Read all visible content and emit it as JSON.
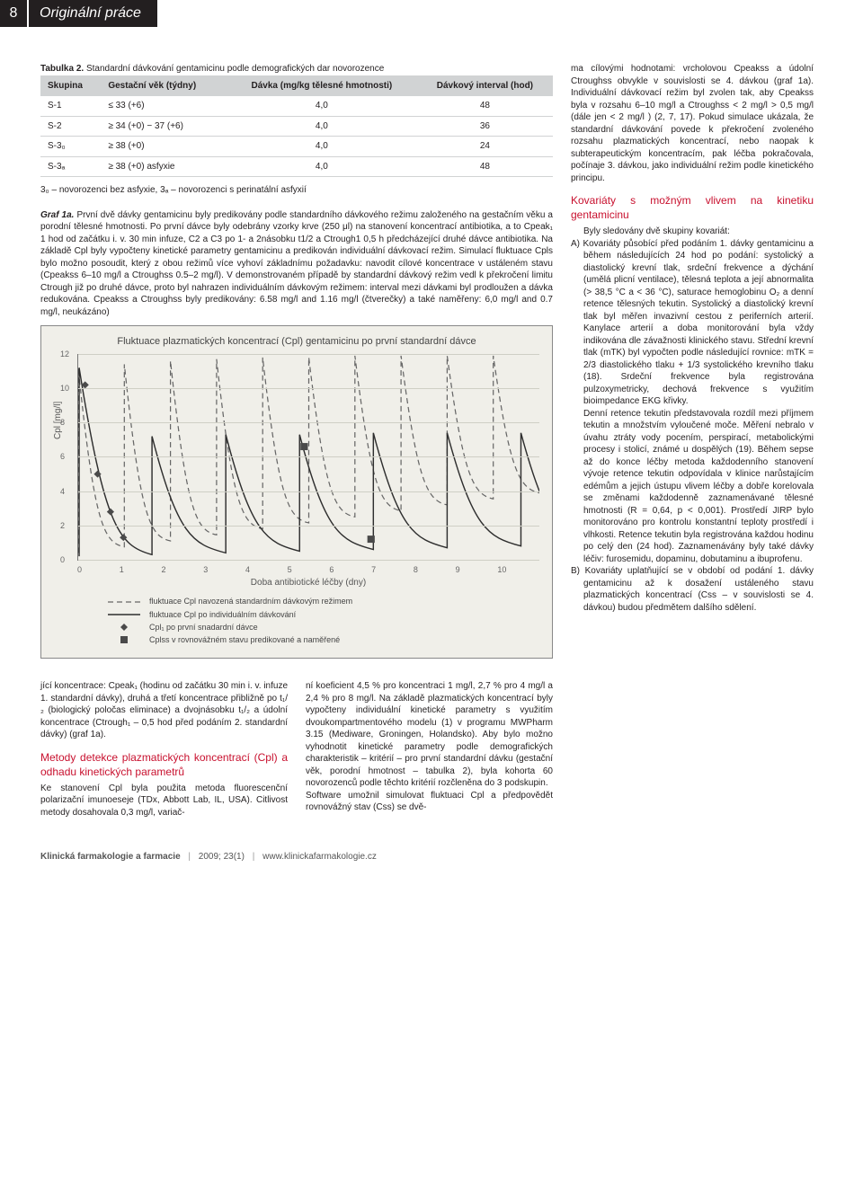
{
  "header": {
    "page_number": "8",
    "section": "Originální práce"
  },
  "table": {
    "title_label": "Tabulka 2.",
    "title_text": "Standardní dávkování gentamicinu podle demografických dar novorozence",
    "columns": {
      "group": "Skupina",
      "gestational": "Gestační věk (týdny)",
      "dose": "Dávka (mg/kg tělesné hmotnosti)",
      "interval": "Dávkový interval (hod)"
    },
    "rows": [
      {
        "group": "S-1",
        "gest": "≤ 33 (+6)",
        "dose": "4,0",
        "interval": "48"
      },
      {
        "group": "S-2",
        "gest": "≥ 34 (+0) − 37 (+6)",
        "dose": "4,0",
        "interval": "36"
      },
      {
        "group": "S-3₀",
        "gest": "≥ 38 (+0)",
        "dose": "4,0",
        "interval": "24"
      },
      {
        "group": "S-3ₐ",
        "gest": "≥ 38 (+0) asfyxie",
        "dose": "4,0",
        "interval": "48"
      }
    ],
    "footnote": "3₀ – novorozenci bez asfyxie, 3ₐ – novorozenci s perinatální asfyxií"
  },
  "graf": {
    "label": "Graf 1a.",
    "caption": "První dvě dávky gentamicinu byly predikovány podle standardního dávkového režimu založeného na gestačním věku a porodní tělesné hmotnosti. Po první dávce byly odebrány vzorky krve (250 μl) na stanovení koncentrací antibiotika, a to Cpeak₁ 1 hod od začátku i. v. 30 min infuze, C2 a C3 po 1- a 2násobku t1/2 a Ctrough1 0,5 h předcházející druhé dávce antibiotika. Na základě Cpl byly vypočteny kinetické parametry gentamicinu a predikován individuální dávkovací režim. Simulací fluktuace Cpls bylo možno posoudit, který z obou režimů více vyhoví základnímu požadavku: navodit cílové koncentrace v ustáleném stavu (Cpeakss 6–10 mg/l a Ctroughss 0.5–2 mg/l). V demonstrovaném případě by standardní dávkový režim vedl k překročení limitu Ctrough již po druhé dávce, proto byl nahrazen individuálním dávkovým režimem: interval mezi dávkami byl prodloužen a dávka redukována. Cpeakss a Ctroughss byly predikovány: 6.58 mg/l and 1.16 mg/l (čtverečky) a také naměřeny: 6,0 mg/l and 0.7 mg/l, neukázáno)"
  },
  "chart": {
    "title": "Fluktuace plazmatických koncentrací (Cpl) gentamicinu po první standardní dávce",
    "ylabel": "Cpl [mg/l]",
    "xlabel": "Doba antibiotické léčby (dny)",
    "ylim": [
      0,
      12
    ],
    "yticks": [
      0,
      2,
      4,
      6,
      8,
      10,
      12
    ],
    "xlim": [
      0,
      10
    ],
    "xticks": [
      0,
      1,
      2,
      3,
      4,
      5,
      6,
      7,
      8,
      9,
      10
    ],
    "grid_color": "#cfcfc5",
    "background_color": "#f0efe9",
    "series": [
      {
        "id": "std",
        "label": "fluktuace Cpl navozená standardním dávkovým režimem",
        "color": "#666666",
        "style": "dashed",
        "width": 1.2,
        "spikes": [
          {
            "x": 0,
            "peak": 11.2
          },
          {
            "x": 1,
            "peak": 11.4
          },
          {
            "x": 2,
            "peak": 11.6
          },
          {
            "x": 3,
            "peak": 11.7
          },
          {
            "x": 4,
            "peak": 11.8
          },
          {
            "x": 5,
            "peak": 11.8
          },
          {
            "x": 6,
            "peak": 11.9
          },
          {
            "x": 7,
            "peak": 11.9
          },
          {
            "x": 8,
            "peak": 11.9
          },
          {
            "x": 9,
            "peak": 11.9
          }
        ],
        "trough_start": 0.4,
        "trough_rise": 0.35
      },
      {
        "id": "indiv",
        "label": "fluktuace Cpl po individuálním dávkování",
        "color": "#2e2e2e",
        "style": "solid",
        "width": 1.4,
        "spikes": [
          {
            "x": 0.02,
            "peak": 11.2
          },
          {
            "x": 1.6,
            "peak": 7.2
          },
          {
            "x": 3.2,
            "peak": 7.3
          },
          {
            "x": 4.8,
            "peak": 7.3
          },
          {
            "x": 6.4,
            "peak": 7.4
          },
          {
            "x": 8.0,
            "peak": 7.4
          },
          {
            "x": 9.6,
            "peak": 7.4
          }
        ],
        "trough_start": 0.2,
        "trough_rise": 0.1
      }
    ],
    "markers": {
      "first_dose": {
        "label": "Cpl₁ po první snadardní dávce",
        "color": "#4a4a4a",
        "shape": "diamond",
        "points": [
          {
            "x": 0.15,
            "y": 10.2
          },
          {
            "x": 0.42,
            "y": 5.0
          },
          {
            "x": 0.7,
            "y": 2.8
          },
          {
            "x": 0.98,
            "y": 1.3
          }
        ]
      },
      "ss": {
        "label": "Cplss v rovnovážném stavu predikované a naměřené",
        "color": "#4a4a4a",
        "shape": "square",
        "points": [
          {
            "x": 4.9,
            "y": 6.6
          },
          {
            "x": 6.35,
            "y": 1.2
          }
        ]
      }
    }
  },
  "body_left": {
    "p1": "jící koncentrace: Cpeak₁ (hodinu od začátku 30 min i. v. infuze 1. standardní dávky), druhá a třetí koncentrace přibližně po t₁/₂ (biologický poločas eliminace) a dvojnásobku t₁/₂ a údolní koncentrace (Ctrough₁ – 0,5 hod před podáním 2. standardní dávky) (graf 1a).",
    "h1": "Metody detekce plazmatických koncentrací (Cpl) a odhadu kinetických parametrů",
    "p2": "Ke stanovení Cpl byla použita metoda fluorescenční polarizační imunoeseje (TDx, Abbott Lab, IL, USA). Citlivost metody dosahovala 0,3 mg/l, variač-",
    "p3": "ní koeficient 4,5 % pro koncentraci 1 mg/l, 2,7 % pro 4 mg/l a 2,4 % pro 8 mg/l. Na základě plazmatických koncentrací byly vypočteny individuální kinetické parametry s využitím dvoukompartmentového modelu (1) v programu MWPharm 3.15 (Mediware, Groningen, Holandsko). Aby bylo možno vyhodnotit kinetické parametry podle demografických charakteristik – kritérií – pro první standardní dávku (gestační věk, porodní hmotnost – tabulka 2), byla kohorta 60 novorozenců podle těchto kritérií rozčleněna do 3 podskupin.",
    "p4": "Software umožnil simulovat fluktuaci Cpl a předpovědět rovnovážný stav (Css) se dvě-"
  },
  "body_right": {
    "p1": "ma cílovými hodnotami: vrcholovou Cpeakss a údolní Ctroughss obvykle v souvislosti se 4. dávkou (graf 1a). Individuální dávkovací režim byl zvolen tak, aby Cpeakss byla v rozsahu 6–10 mg/l a Ctroughss < 2 mg/l > 0,5 mg/l (dále jen < 2 mg/l ) (2, 7, 17). Pokud simulace ukázala, že standardní dávkování povede k překročení zvoleného rozsahu plazmatických koncentrací, nebo naopak k subterapeutickým koncentracím, pak léčba pokračovala, počínaje 3. dávkou, jako individuální režim podle kinetického principu.",
    "h1": "Kovariáty s možným vlivem na kinetiku gentamicinu",
    "p2": "Byly sledovány dvě skupiny kovariát:",
    "li_a": "A)  Kovariáty působící před podáním 1. dávky gentamicinu a během následujících 24 hod po podání: systolický a diastolický krevní tlak, srdeční frekvence a dýchání (umělá plicní ventilace), tělesná teplota a její abnormalita (> 38,5 °C a < 36 °C), saturace hemoglobinu O₂ a denní retence tělesných tekutin. Systolický a diastolický krevní tlak byl měřen invazivní cestou z periferních arterií. Kanylace arterií a doba monitorování byla vždy indikována dle závažnosti klinického stavu. Střední krevní tlak (mTK) byl vypočten podle následující rovnice: mTK = 2/3 diastolického tlaku + 1/3 systolického krevního tlaku (18). Srdeční frekvence byla registrována pulzoxymetricky, dechová frekvence s využitím bioimpedance EKG křivky.",
    "li_a2": "Denní retence tekutin představovala rozdíl mezi příjmem tekutin a množstvím vyloučené moče. Měření nebralo v úvahu ztráty vody pocením, perspirací, metabolickými procesy i stolicí, známé u dospělých (19). Během sepse až do konce léčby metoda každodenního stanovení vývoje retence tekutin odpovídala v klinice narůstajícím edémům a jejich ústupu vlivem léčby a dobře korelovala se změnami každodenně zaznamenávané tělesné hmotnosti (R = 0,64, p < 0,001). Prostředí JIRP bylo monitorováno pro kontrolu konstantní teploty prostředí i vlhkosti. Retence tekutin byla registrována každou hodinu po celý den (24 hod). Zaznamenávány byly také dávky léčiv: furosemidu, dopaminu, dobutaminu a ibuprofenu.",
    "li_b": "B)  Kovariáty uplatňující se v období od podání 1. dávky gentamicinu až k dosažení ustáleného stavu plazmatických koncentrací (Css – v souvislosti se 4. dávkou) budou předmětem dalšího sdělení."
  },
  "footer": {
    "journal": "Klinická farmakologie a farmacie",
    "issue": "2009; 23(1)",
    "url": "www.klinickafarmakologie.cz"
  }
}
